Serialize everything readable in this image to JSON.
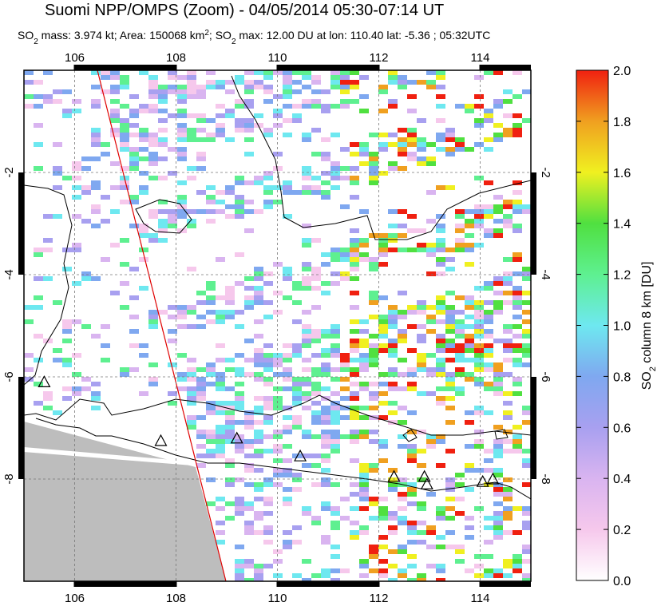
{
  "map": {
    "title": "Suomi NPP/OMPS (Zoom) - 04/05/2014 05:30-07:14 UT",
    "subtitle": [
      "SO",
      "2",
      " mass: 3.974 kt; Area: 150068 km",
      "2",
      "; SO",
      "2",
      " max: 12.00 DU at lon: 110.40 lat: -5.36 ; 05:32UTC"
    ],
    "xlim": [
      105,
      115
    ],
    "ylim": [
      -10,
      0
    ],
    "xticks": [
      106,
      108,
      110,
      112,
      114
    ],
    "yticks": [
      -2,
      -4,
      -6,
      -8
    ],
    "volcanoes": {
      "lon": [
        105.4,
        107.7,
        109.2,
        110.45,
        112.3,
        112.9,
        112.95,
        114.05,
        114.25
      ],
      "lat": [
        -6.1,
        -7.25,
        -7.2,
        -7.55,
        -7.95,
        -7.95,
        -8.1,
        -8.05,
        -8.0
      ]
    },
    "colorbar": {
      "label": [
        "SO",
        "2",
        " column 8 km [DU]"
      ],
      "clim": [
        0,
        2
      ],
      "ticks": [
        {
          "value": 0,
          "label": "0.0"
        },
        0.2,
        0.4,
        0.6,
        0.8,
        {
          "value": 1,
          "label": "1.0"
        },
        1.2,
        1.4,
        1.6,
        1.8,
        {
          "value": 2,
          "label": "2.0"
        }
      ],
      "colors": [
        "#ffffff",
        "#f6c8ec",
        "#d9b4f0",
        "#a8a0f0",
        "#7fa8f0",
        "#6ee8f0",
        "#5ef090",
        "#50e040",
        "#f0f020",
        "#f0a020",
        "#f02010"
      ]
    }
  }
}
